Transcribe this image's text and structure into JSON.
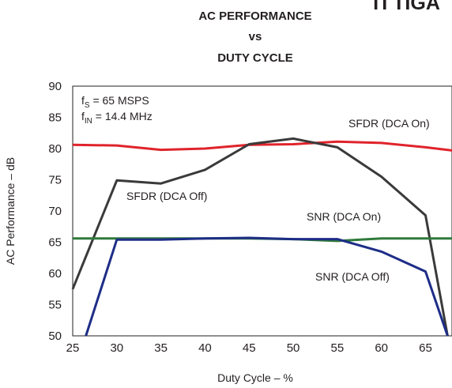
{
  "corner_text": "TI TIGA",
  "chart_data": {
    "type": "line",
    "title_lines": [
      "AC PERFORMANCE",
      "vs",
      "DUTY CYCLE"
    ],
    "xlabel": "Duty Cycle – %",
    "ylabel": "AC Performance – dB",
    "xlim": [
      25,
      68
    ],
    "ylim": [
      50,
      90
    ],
    "xticks": [
      25,
      30,
      35,
      40,
      45,
      50,
      55,
      60,
      65
    ],
    "yticks": [
      50,
      55,
      60,
      65,
      70,
      75,
      80,
      85,
      90
    ],
    "grid": false,
    "conditions": {
      "fs": {
        "sym": "f",
        "sub": "S",
        "rest": " = 65 MSPS"
      },
      "fin": {
        "sym": "f",
        "sub": "IN",
        "rest": " = 14.4 MHz"
      }
    },
    "series": [
      {
        "name": "SFDR (DCA On)",
        "color": "#e0232b",
        "x": [
          25,
          30,
          35,
          40,
          45,
          50,
          55,
          60,
          65,
          68
        ],
        "y": [
          80.6,
          80.5,
          79.8,
          80.0,
          80.6,
          80.7,
          81.1,
          80.9,
          80.2,
          79.7
        ]
      },
      {
        "name": "SFDR (DCA Off)",
        "color": "#3a3a3a",
        "x": [
          25,
          30,
          35,
          40,
          45,
          50,
          55,
          60,
          65,
          67.5
        ],
        "y": [
          57.5,
          74.9,
          74.4,
          76.6,
          80.7,
          81.6,
          80.2,
          75.5,
          69.3,
          50
        ]
      },
      {
        "name": "SNR (DCA On)",
        "color": "#2f7a3a",
        "x": [
          25,
          30,
          35,
          40,
          45,
          50,
          55,
          60,
          65,
          68
        ],
        "y": [
          65.6,
          65.6,
          65.6,
          65.6,
          65.6,
          65.5,
          65.2,
          65.6,
          65.6,
          65.6
        ]
      },
      {
        "name": "SNR (DCA Off)",
        "color": "#1e2d87",
        "x": [
          26.5,
          30,
          35,
          40,
          45,
          50,
          55,
          60,
          65,
          67.5
        ],
        "y": [
          50,
          65.4,
          65.4,
          65.6,
          65.7,
          65.5,
          65.5,
          63.5,
          60.3,
          50
        ]
      }
    ]
  }
}
